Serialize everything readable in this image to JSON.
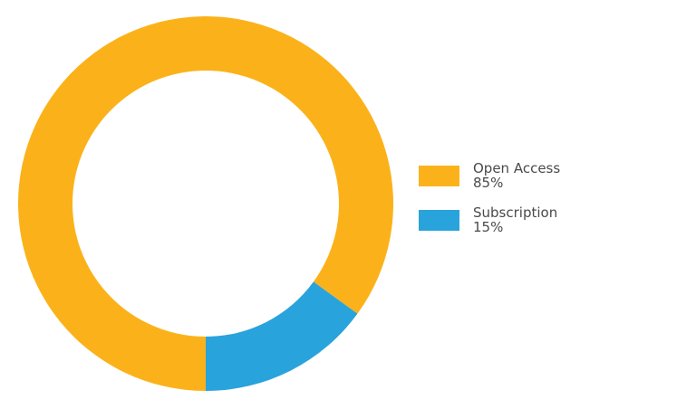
{
  "chart_data": {
    "type": "pie",
    "donut": true,
    "title": "",
    "slices": [
      {
        "label": "Open Access",
        "value": 85,
        "value_label": "85%",
        "color": "#FBB21A"
      },
      {
        "label": "Subscription",
        "value": 15,
        "value_label": "15%",
        "color": "#29A3DC"
      }
    ],
    "legend_position": "right"
  }
}
